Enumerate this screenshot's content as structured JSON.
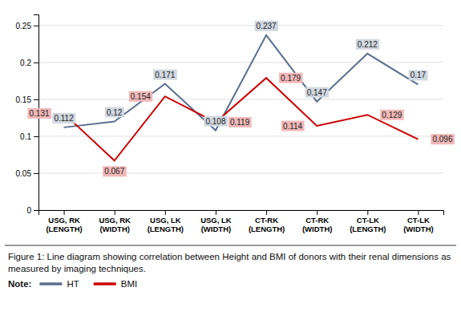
{
  "chart_data": {
    "type": "line",
    "title": "Figure 1: Line diagram showing correlation between Height and BMI of donors with their renal dimensions as measured by imaging techniques.",
    "annotations": [
      "Note:"
    ],
    "categories": [
      "USG, RK\n(LENGTH)",
      "USG, RK\n(WIDTH)",
      "USG, LK\n(LENGTH)",
      "USG, LK\n(WIDTH)",
      "CT-RK\n(LENGTH)",
      "CT-RK\n(WIDTH)",
      "CT-LK\n(LENGTH)",
      "CT-LK\n(WIDTH)"
    ],
    "series": [
      {
        "name": "HT",
        "color": "#5A6F8F",
        "values": [
          0.112,
          0.12,
          0.171,
          0.108,
          0.237,
          0.147,
          0.212,
          0.17
        ]
      },
      {
        "name": "BMI",
        "color": "#CC0000",
        "values": [
          0.131,
          0.067,
          0.154,
          0.119,
          0.179,
          0.114,
          0.129,
          0.096
        ]
      }
    ],
    "ylim": [
      0,
      0.265
    ],
    "yticks": [
      0,
      0.05,
      0.1,
      0.15,
      0.2,
      0.25
    ],
    "grid": true,
    "data_labels": true,
    "legend": "bottom"
  }
}
